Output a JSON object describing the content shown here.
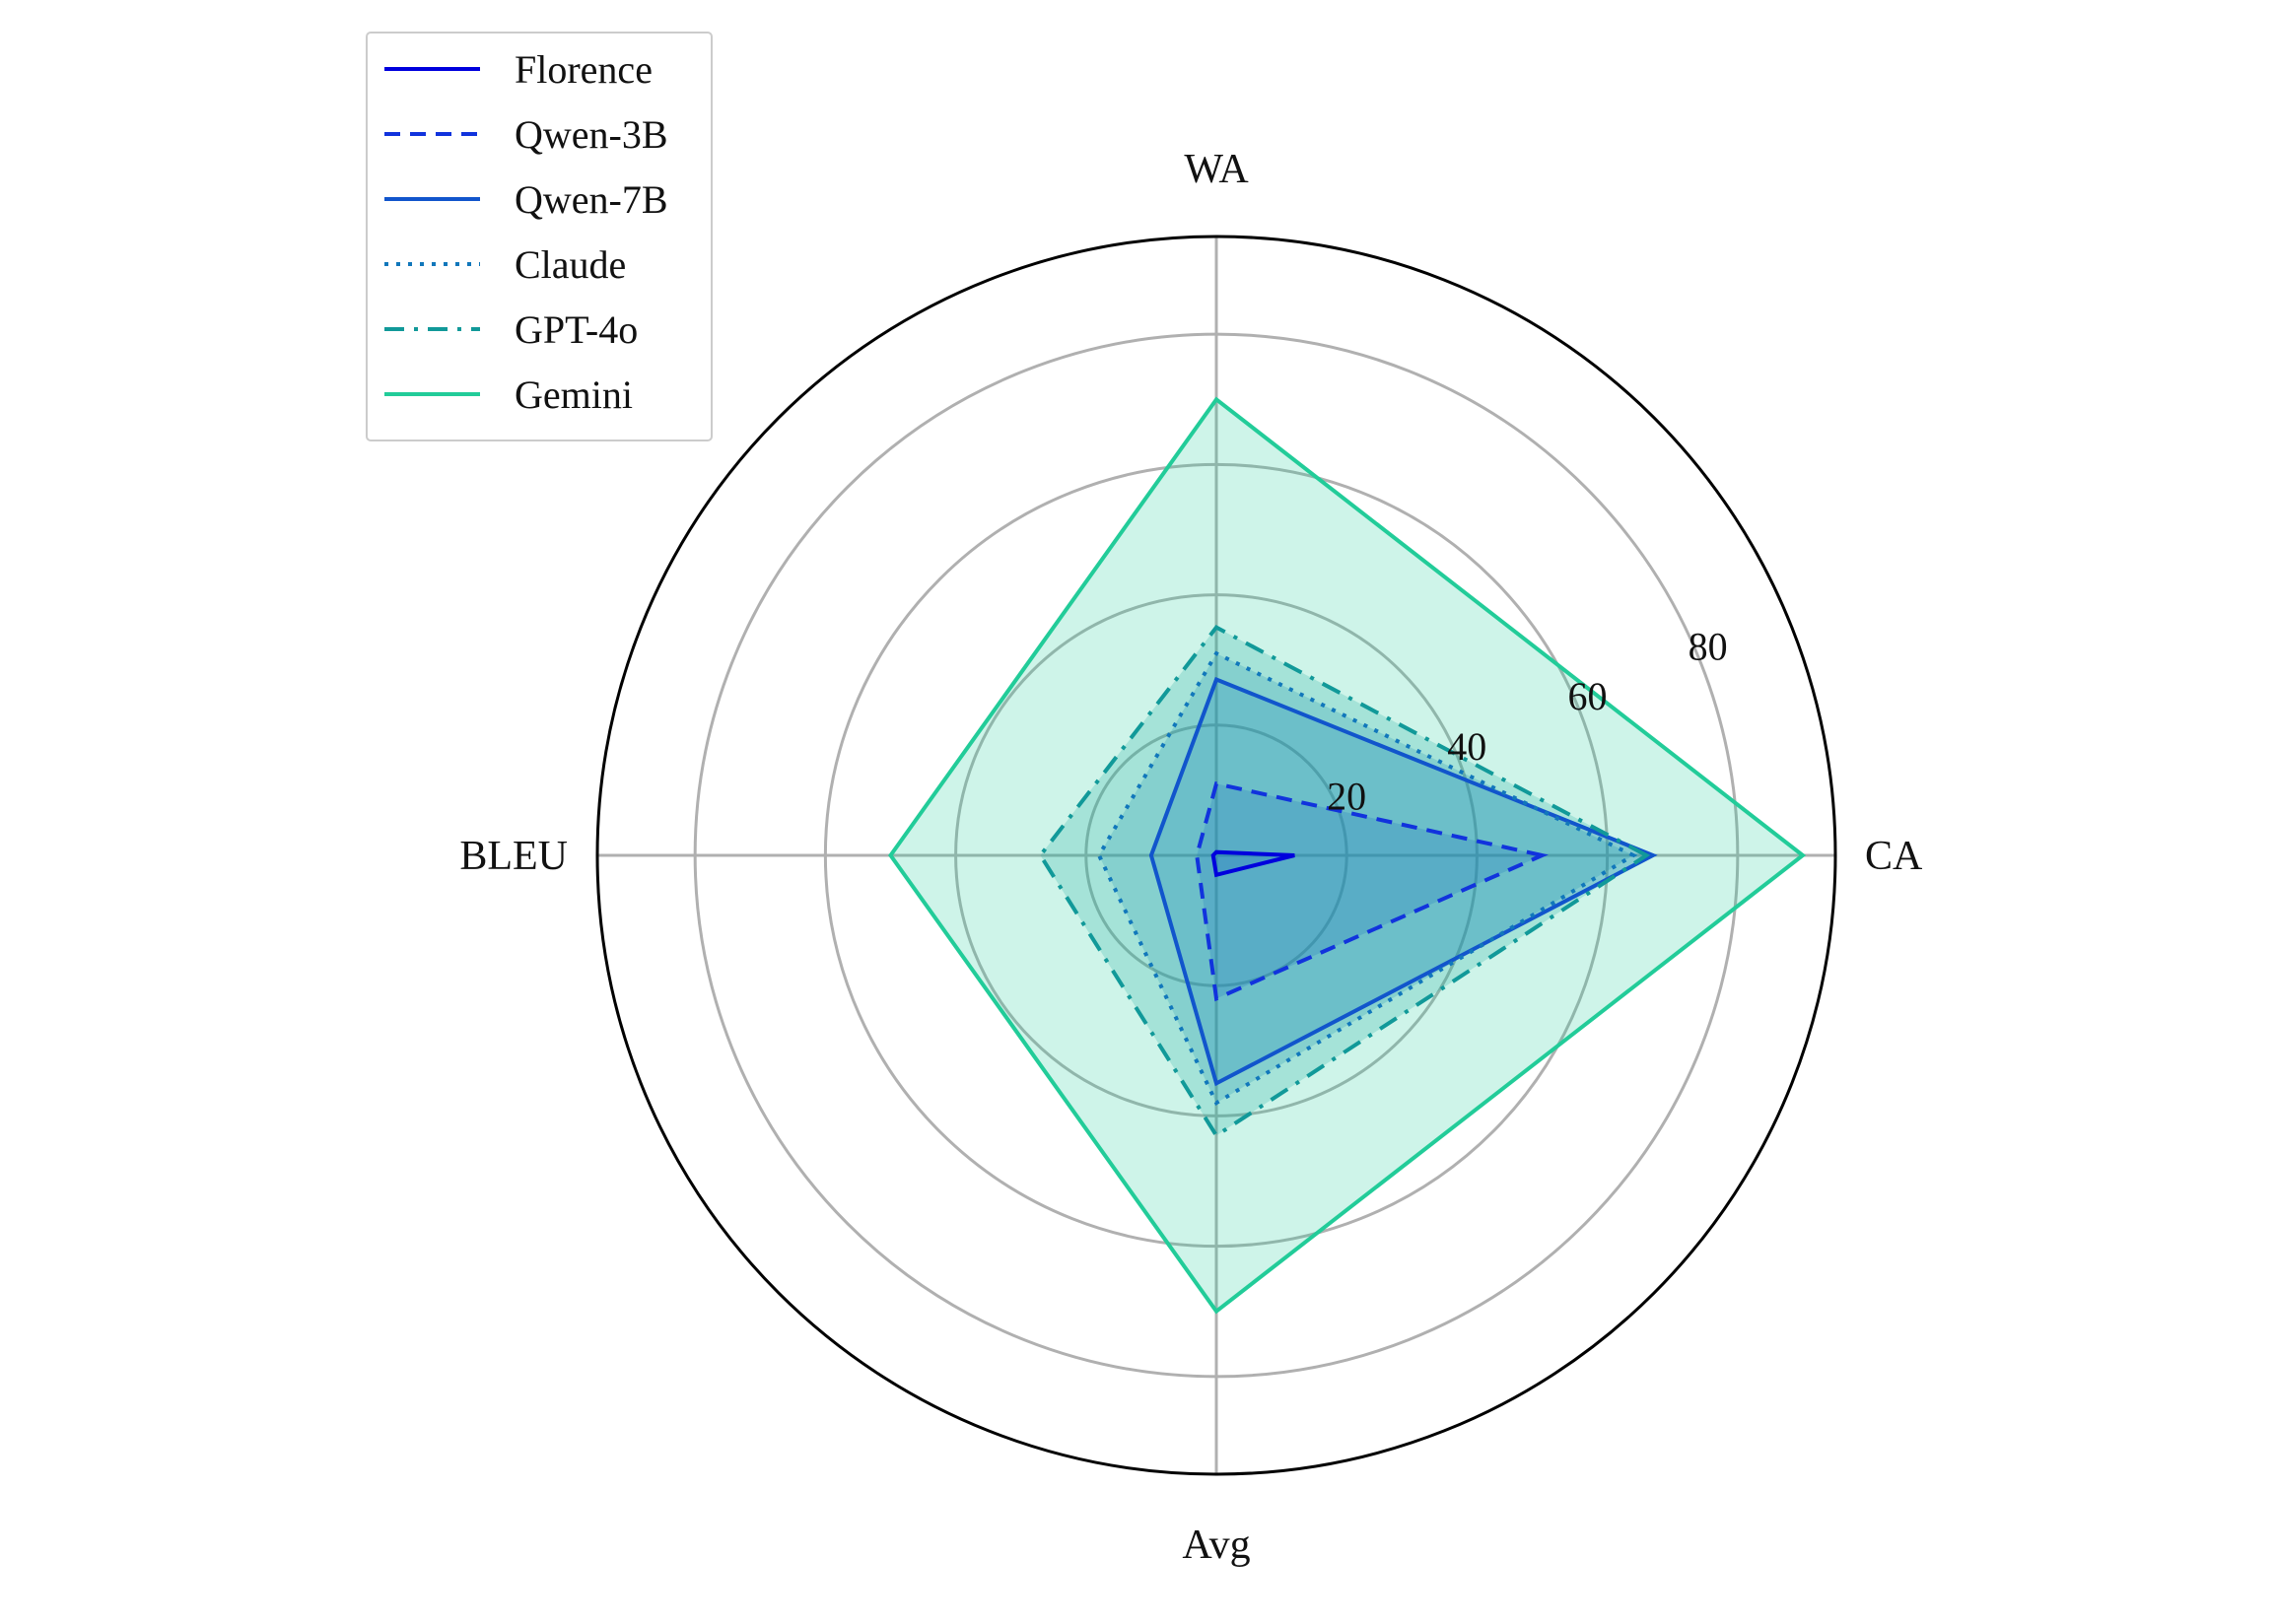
{
  "chart_data": {
    "type": "radar",
    "axes": [
      "CA",
      "WA",
      "BLEU",
      "Avg"
    ],
    "r_ticks": [
      20,
      40,
      60,
      80
    ],
    "r_max": 95,
    "grid": true,
    "legend_position": "top-left",
    "series": [
      {
        "name": "Florence",
        "values": [
          12,
          0.5,
          0.5,
          3
        ],
        "color": "#0000dd",
        "dash": "solid",
        "width": 4,
        "fill": true
      },
      {
        "name": "Qwen-3B",
        "values": [
          50,
          11,
          3,
          22
        ],
        "color": "#1133dd",
        "dash": "dashed",
        "width": 4,
        "fill": true
      },
      {
        "name": "Qwen-7B",
        "values": [
          67,
          27,
          10,
          35
        ],
        "color": "#1155cc",
        "dash": "solid",
        "width": 4,
        "fill": true
      },
      {
        "name": "Claude",
        "values": [
          64,
          31,
          18,
          38
        ],
        "color": "#1177bb",
        "dash": "dotted",
        "width": 4,
        "fill": true
      },
      {
        "name": "GPT-4o",
        "values": [
          66,
          35,
          27,
          43
        ],
        "color": "#119999",
        "dash": "dashdot",
        "width": 4,
        "fill": true
      },
      {
        "name": "Gemini",
        "values": [
          90,
          70,
          50,
          70
        ],
        "color": "#22cc99",
        "dash": "solid",
        "width": 4,
        "fill": true
      }
    ]
  }
}
